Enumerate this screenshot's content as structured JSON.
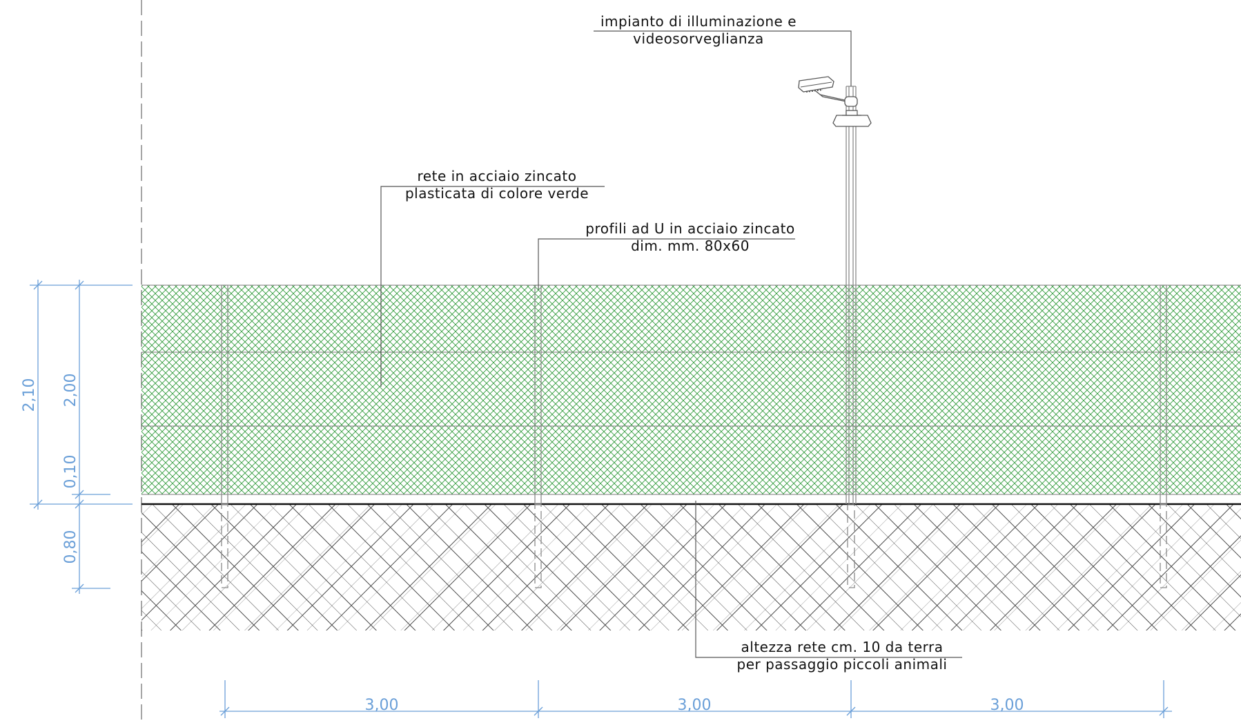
{
  "annotations": {
    "lighting_line1": "impianto di illuminazione e",
    "lighting_line2": "videosorveglianza",
    "mesh_line1": "rete in acciaio zincato",
    "mesh_line2": "plasticata di colore verde",
    "profiles_line1": "profili ad U in acciaio zincato",
    "profiles_line2": "dim. mm. 80x60",
    "gap_line1": "altezza rete cm. 10 da terra",
    "gap_line2": "per passaggio piccoli animali"
  },
  "dimensions": {
    "total_height": "2,10",
    "mesh_height": "2,00",
    "ground_gap": "0,10",
    "foundation_depth": "0,80",
    "span_1": "3,00",
    "span_2": "3,00",
    "span_3": "3,00"
  },
  "colors": {
    "mesh": "#2f9a3a",
    "dimension": "#6a9fd8",
    "soil_hatch": "#4a4a4a",
    "ground_line": "#111111"
  }
}
